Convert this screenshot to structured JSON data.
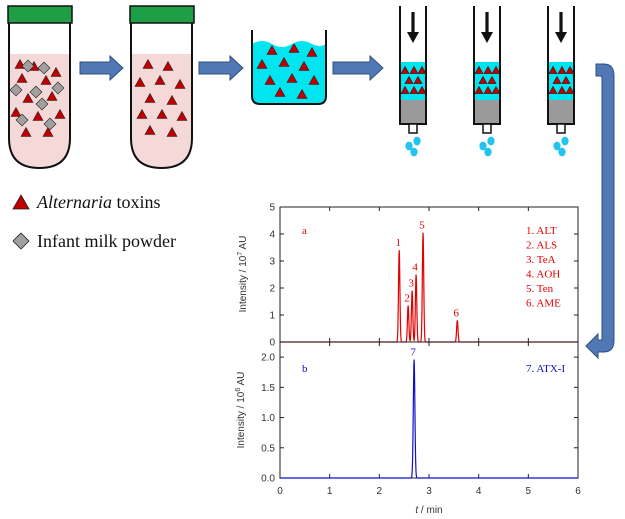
{
  "legend": {
    "toxins": {
      "italic": "Alternaria",
      "rest": " toxins"
    },
    "milk": {
      "label": "Infant milk powder"
    }
  },
  "colors": {
    "toxin_red": "#c00000",
    "powder_gray": "#a0a0a0",
    "cap_green": "#1e9e46",
    "tube_pink": "#f4d9d8",
    "solution_cyan": "#00e5f0",
    "arrow_blue": "#4f78b4",
    "trace_a": "#e30000",
    "trace_b": "#1010cc"
  },
  "icons": {
    "toxin": "red-triangle-icon",
    "powder": "gray-diamond-icon",
    "press": "down-arrow-icon",
    "drop": "droplet-icon"
  },
  "chart_data": [
    {
      "type": "line",
      "panel_label": "a",
      "xlim": [
        0,
        6
      ],
      "ylim": [
        0,
        5
      ],
      "y_ticks": [
        "0",
        "1",
        "2",
        "3",
        "4",
        "5"
      ],
      "ylabel": {
        "prefix": "Intensity / 10",
        "exp": "7",
        "suffix": " AU"
      },
      "legend_entries": [
        "1. ALT",
        "2. ALS",
        "3. TeA",
        "4. AOH",
        "5. Ten",
        "6. AME"
      ],
      "peaks": [
        {
          "label": "1",
          "x": 2.4,
          "y": 3.4
        },
        {
          "label": "2",
          "x": 2.58,
          "y": 1.35
        },
        {
          "label": "3",
          "x": 2.66,
          "y": 1.9
        },
        {
          "label": "4",
          "x": 2.74,
          "y": 2.5
        },
        {
          "label": "5",
          "x": 2.88,
          "y": 4.05
        },
        {
          "label": "6",
          "x": 3.57,
          "y": 0.8
        }
      ]
    },
    {
      "type": "line",
      "panel_label": "b",
      "xlim": [
        0,
        6
      ],
      "ylim": [
        0,
        2.25
      ],
      "x_ticks": [
        "0",
        "1",
        "2",
        "3",
        "4",
        "5",
        "6"
      ],
      "y_ticks": [
        "0.0",
        "0.5",
        "1.0",
        "1.5",
        "2.0"
      ],
      "xlabel": {
        "italic": "t",
        "rest": " / min"
      },
      "ylabel": {
        "prefix": "Intensity / 10",
        "exp": "6",
        "suffix": " AU"
      },
      "legend_entries": [
        "7. ATX-I"
      ],
      "peaks": [
        {
          "label": "7",
          "x": 2.7,
          "y": 1.96
        }
      ]
    }
  ]
}
